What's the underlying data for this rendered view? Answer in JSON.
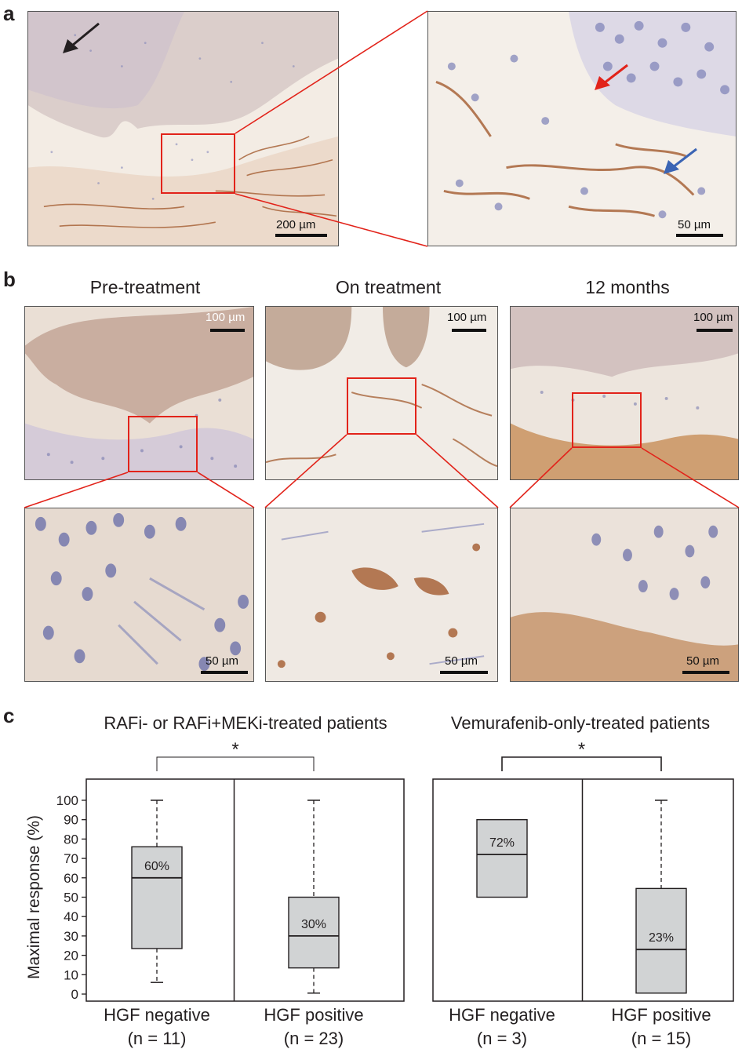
{
  "panel_a": {
    "letter": "a",
    "left_scale": "200 µm",
    "right_scale": "50 µm"
  },
  "panel_b": {
    "letter": "b",
    "columns": [
      {
        "title": "Pre-treatment",
        "top_scale": "100 µm",
        "bottom_scale": "50 µm"
      },
      {
        "title": "On treatment",
        "top_scale": "100 µm",
        "bottom_scale": "50 µm"
      },
      {
        "title": "12 months",
        "top_scale": "100 µm",
        "bottom_scale": "50 µm"
      }
    ]
  },
  "panel_c": {
    "letter": "c"
  },
  "colors": {
    "box_fill": "#d1d3d4",
    "zoom_red": "#e2231a",
    "arrow_black": "#231f20",
    "arrow_red": "#e2231a",
    "arrow_blue": "#3a64b4",
    "tissue_bg": "#f3ece4",
    "hematoxylin": "#7d82b8",
    "dab_brown": "#a8643a"
  },
  "chart_data": [
    {
      "type": "box",
      "title": "RAFi- or RAFi+MEKi-treated patients",
      "ylabel": "Maximal response (%)",
      "ylim": [
        0,
        100
      ],
      "yticks": [
        0,
        10,
        20,
        30,
        40,
        50,
        60,
        70,
        80,
        90,
        100
      ],
      "significance": "*",
      "groups": [
        {
          "label": "HGF negative",
          "n_label": "(n = 11)",
          "n": 11,
          "min": 6,
          "q1": 23.5,
          "median": 60,
          "q3": 76,
          "max": 100,
          "median_label": "60%"
        },
        {
          "label": "HGF positive",
          "n_label": "(n = 23)",
          "n": 23,
          "min": 0.5,
          "q1": 13.5,
          "median": 30,
          "q3": 50,
          "max": 100,
          "median_label": "30%"
        }
      ]
    },
    {
      "type": "box",
      "title": "Vemurafenib-only-treated patients",
      "ylabel": "",
      "ylim": [
        0,
        100
      ],
      "significance": "*",
      "groups": [
        {
          "label": "HGF negative",
          "n_label": "(n = 3)",
          "n": 3,
          "min": 50,
          "q1": 50,
          "median": 72,
          "q3": 90,
          "max": 90,
          "median_label": "72%"
        },
        {
          "label": "HGF positive",
          "n_label": "(n = 15)",
          "n": 15,
          "min": 0.5,
          "q1": 0.5,
          "median": 23,
          "q3": 54.5,
          "max": 100,
          "median_label": "23%"
        }
      ]
    }
  ]
}
